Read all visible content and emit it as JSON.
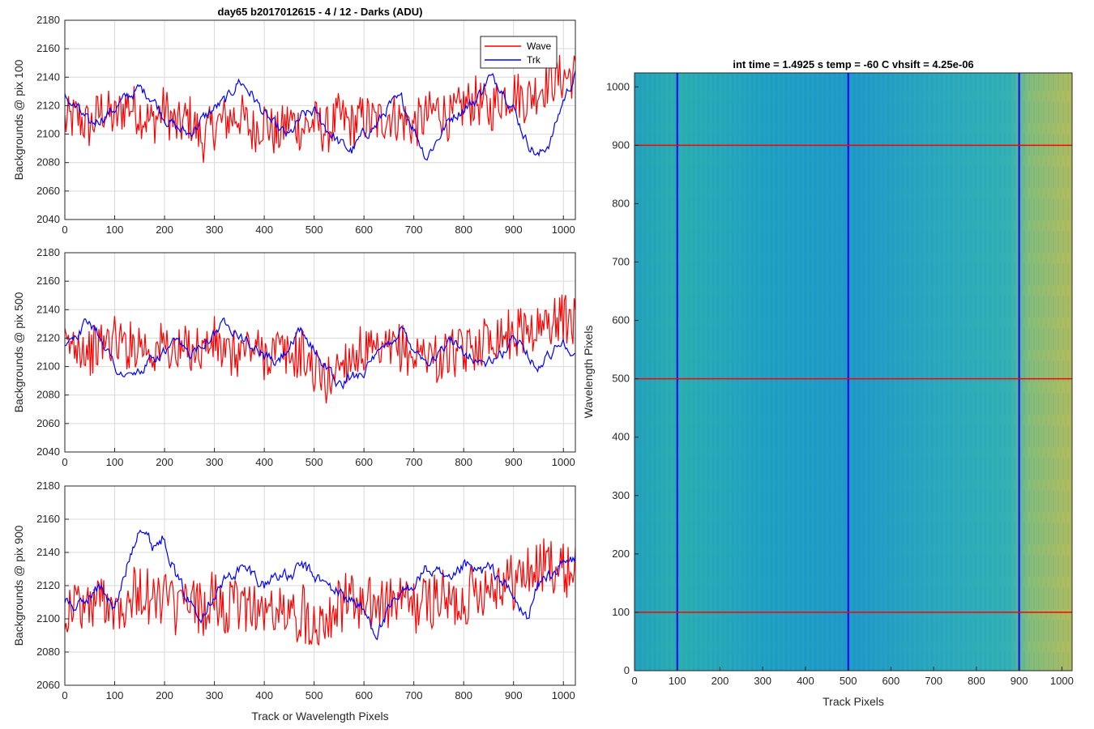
{
  "figure": {
    "colors": {
      "wave": "#ff0000",
      "trk": "#0000ff",
      "grid": "#d9d9d9",
      "axis": "#262626"
    }
  },
  "chart_data": [
    {
      "type": "line",
      "title": "day65 b2017012615 - 4 / 12 - Darks (ADU)",
      "xlabel": "",
      "ylabel": "Backgrounds @ pix 100",
      "xlim": [
        0,
        1024
      ],
      "ylim": [
        2040,
        2180
      ],
      "xticks": [
        "0",
        "100",
        "200",
        "300",
        "400",
        "500",
        "600",
        "700",
        "800",
        "900",
        "1000"
      ],
      "yticks": [
        "2040",
        "2060",
        "2080",
        "2100",
        "2120",
        "2140",
        "2160",
        "2180"
      ],
      "grid": true,
      "legend": {
        "placement": "top-right",
        "entries": [
          "Wave",
          "Trk"
        ]
      },
      "x": [
        0,
        25,
        50,
        75,
        100,
        125,
        150,
        175,
        200,
        225,
        250,
        275,
        300,
        325,
        350,
        375,
        400,
        425,
        450,
        475,
        500,
        525,
        550,
        575,
        600,
        625,
        650,
        675,
        700,
        725,
        750,
        775,
        800,
        825,
        850,
        875,
        900,
        925,
        950,
        975,
        1000,
        1024
      ],
      "series": [
        {
          "name": "Wave",
          "values": [
            2108,
            2112,
            2105,
            2118,
            2110,
            2122,
            2115,
            2108,
            2118,
            2104,
            2112,
            2096,
            2106,
            2110,
            2114,
            2102,
            2110,
            2098,
            2110,
            2104,
            2108,
            2102,
            2112,
            2106,
            2112,
            2108,
            2114,
            2110,
            2106,
            2112,
            2118,
            2110,
            2120,
            2124,
            2116,
            2126,
            2130,
            2124,
            2132,
            2138,
            2140,
            2142
          ]
        },
        {
          "name": "Trk",
          "values": [
            2126,
            2118,
            2106,
            2112,
            2118,
            2126,
            2132,
            2126,
            2112,
            2104,
            2100,
            2110,
            2118,
            2124,
            2138,
            2128,
            2114,
            2104,
            2098,
            2112,
            2116,
            2104,
            2094,
            2088,
            2100,
            2106,
            2120,
            2124,
            2104,
            2084,
            2098,
            2112,
            2118,
            2124,
            2140,
            2134,
            2118,
            2096,
            2084,
            2096,
            2124,
            2142
          ]
        }
      ]
    },
    {
      "type": "line",
      "title": "",
      "xlabel": "",
      "ylabel": "Backgrounds @ pix 500",
      "xlim": [
        0,
        1024
      ],
      "ylim": [
        2040,
        2180
      ],
      "xticks": [
        "0",
        "100",
        "200",
        "300",
        "400",
        "500",
        "600",
        "700",
        "800",
        "900",
        "1000"
      ],
      "yticks": [
        "2040",
        "2060",
        "2080",
        "2100",
        "2120",
        "2140",
        "2160",
        "2180"
      ],
      "grid": true,
      "x": [
        0,
        25,
        50,
        75,
        100,
        125,
        150,
        175,
        200,
        225,
        250,
        275,
        300,
        325,
        350,
        375,
        400,
        425,
        450,
        475,
        500,
        525,
        550,
        575,
        600,
        625,
        650,
        675,
        700,
        725,
        750,
        775,
        800,
        825,
        850,
        875,
        900,
        925,
        950,
        975,
        1000,
        1024
      ],
      "series": [
        {
          "name": "Wave",
          "values": [
            2112,
            2118,
            2110,
            2116,
            2120,
            2114,
            2118,
            2110,
            2116,
            2108,
            2114,
            2112,
            2118,
            2106,
            2110,
            2114,
            2108,
            2112,
            2106,
            2110,
            2098,
            2088,
            2102,
            2108,
            2112,
            2106,
            2110,
            2114,
            2106,
            2112,
            2104,
            2110,
            2108,
            2116,
            2120,
            2124,
            2122,
            2128,
            2126,
            2132,
            2134,
            2130
          ]
        },
        {
          "name": "Trk",
          "values": [
            2118,
            2124,
            2132,
            2120,
            2100,
            2092,
            2096,
            2104,
            2110,
            2116,
            2108,
            2118,
            2124,
            2132,
            2124,
            2114,
            2108,
            2102,
            2114,
            2124,
            2112,
            2100,
            2086,
            2092,
            2098,
            2106,
            2116,
            2126,
            2114,
            2104,
            2108,
            2118,
            2112,
            2104,
            2102,
            2108,
            2120,
            2112,
            2098,
            2110,
            2118,
            2108
          ]
        }
      ]
    },
    {
      "type": "line",
      "title": "",
      "xlabel": "Track or Wavelength Pixels",
      "ylabel": "Backgrounds @ pix 900",
      "xlim": [
        0,
        1024
      ],
      "ylim": [
        2060,
        2180
      ],
      "xticks": [
        "0",
        "100",
        "200",
        "300",
        "400",
        "500",
        "600",
        "700",
        "800",
        "900",
        "1000"
      ],
      "yticks": [
        "2060",
        "2080",
        "2100",
        "2120",
        "2140",
        "2160",
        "2180"
      ],
      "grid": true,
      "x": [
        0,
        25,
        50,
        75,
        100,
        125,
        150,
        175,
        200,
        225,
        250,
        275,
        300,
        325,
        350,
        375,
        400,
        425,
        450,
        475,
        500,
        525,
        550,
        575,
        600,
        625,
        650,
        675,
        700,
        725,
        750,
        775,
        800,
        825,
        850,
        875,
        900,
        925,
        950,
        975,
        1000,
        1024
      ],
      "series": [
        {
          "name": "Wave",
          "values": [
            2104,
            2110,
            2106,
            2114,
            2108,
            2112,
            2118,
            2110,
            2114,
            2104,
            2110,
            2106,
            2112,
            2104,
            2108,
            2110,
            2102,
            2106,
            2100,
            2104,
            2098,
            2104,
            2108,
            2112,
            2106,
            2110,
            2108,
            2112,
            2106,
            2110,
            2114,
            2108,
            2112,
            2118,
            2120,
            2124,
            2122,
            2128,
            2130,
            2134,
            2128,
            2132
          ]
        },
        {
          "name": "Trk",
          "values": [
            2112,
            2106,
            2114,
            2120,
            2104,
            2132,
            2158,
            2144,
            2150,
            2124,
            2110,
            2104,
            2116,
            2124,
            2130,
            2128,
            2120,
            2128,
            2124,
            2132,
            2126,
            2120,
            2116,
            2112,
            2104,
            2092,
            2104,
            2114,
            2122,
            2130,
            2126,
            2120,
            2132,
            2128,
            2130,
            2124,
            2112,
            2100,
            2120,
            2128,
            2132,
            2136
          ]
        }
      ]
    },
    {
      "type": "heatmap",
      "title": "int time = 1.4925 s    temp = -60 C    vhsift = 4.25e-06",
      "xlabel": "Track Pixels",
      "ylabel": "Wavelength Pixels",
      "xlim": [
        0,
        1024
      ],
      "ylim": [
        0,
        1024
      ],
      "xticks": [
        "0",
        "100",
        "200",
        "300",
        "400",
        "500",
        "600",
        "700",
        "800",
        "900",
        "1000"
      ],
      "yticks": [
        "0",
        "100",
        "200",
        "300",
        "400",
        "500",
        "600",
        "700",
        "800",
        "900",
        "1000"
      ],
      "colormap": [
        "#1f96c8",
        "#20a8b8",
        "#3cb8a0",
        "#8cbd6a",
        "#c8bc48"
      ],
      "vertical_lines": {
        "color": "#0000ff",
        "x": [
          100,
          500,
          900
        ]
      },
      "horizontal_lines": {
        "color": "#ff0000",
        "y": [
          100,
          500,
          900
        ]
      }
    }
  ]
}
